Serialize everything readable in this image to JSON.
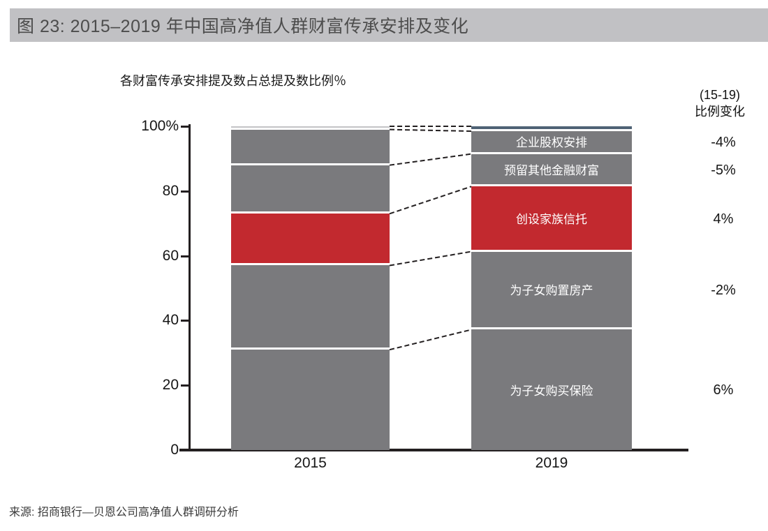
{
  "header": {
    "title": "图 23:  2015–2019 年中国高净值人群财富传承安排及变化"
  },
  "chart_data": {
    "type": "bar",
    "subtype": "stacked-percent-with-slope-connectors",
    "axis_title": "各财富传承安排提及数占总提及数比例％",
    "categories": [
      "2015",
      "2019"
    ],
    "ylim": [
      0,
      100
    ],
    "grid": false,
    "yticks": [
      {
        "value": 100,
        "label": "100%"
      },
      {
        "value": 80,
        "label": "80"
      },
      {
        "value": 60,
        "label": "60"
      },
      {
        "value": 40,
        "label": "40"
      },
      {
        "value": 20,
        "label": "20"
      },
      {
        "value": 0,
        "label": "0"
      }
    ],
    "segments": [
      {
        "key": "top-strip",
        "label": "",
        "values": {
          "2015": 1.0,
          "2019": 1.5
        },
        "colors": {
          "2015": "#c3c3c6",
          "2019": "#4f6275"
        },
        "change": ""
      },
      {
        "key": "corporate-equity",
        "label": "企业股权安排",
        "values": {
          "2015": 11,
          "2019": 7
        },
        "change": "-4%"
      },
      {
        "key": "reserved-financial-wealth",
        "label": "预留其他金融财富",
        "values": {
          "2015": 15,
          "2019": 10
        },
        "change": "-5%"
      },
      {
        "key": "family-trust",
        "label": "创设家族信托",
        "highlight": true,
        "values": {
          "2015": 16,
          "2019": 20
        },
        "change": "4%"
      },
      {
        "key": "property-for-children",
        "label": "为子女购置房产",
        "values": {
          "2015": 26,
          "2019": 24
        },
        "change": "-2%"
      },
      {
        "key": "insurance-for-children",
        "label": "为子女购买保险",
        "values": {
          "2015": 31,
          "2019": 37
        },
        "change": "6%"
      }
    ],
    "change_column": {
      "header": [
        "(15-19)",
        "比例变化"
      ]
    },
    "colors": {
      "bar_gray": "#7a7a7d",
      "highlight_red": "#c2292f",
      "separator": "#ffffff",
      "axis": "#231f20",
      "connector": "#231f20",
      "title_bar_bg": "#c1c1c4",
      "title_text": "#4d4d4d",
      "segment_label_text": "#ffffff"
    }
  },
  "footer": {
    "source": "来源: 招商银行—贝恩公司高净值人群调研分析"
  }
}
